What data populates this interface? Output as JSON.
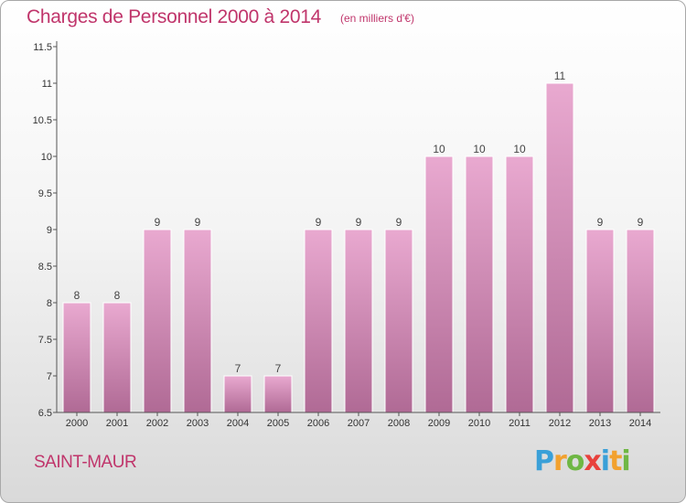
{
  "header": {
    "title": "Charges de Personnel 2000 à 2014",
    "subtitle": "(en milliers d'€)"
  },
  "location": "SAINT-MAUR",
  "logo": {
    "letters": [
      "P",
      "r",
      "o",
      "x",
      "i",
      "t",
      "i"
    ]
  },
  "colors": {
    "accent": "#c0356b",
    "bar_top": "#e9a9d0",
    "bar_bottom": "#b06a95"
  },
  "chart_data": {
    "type": "bar",
    "categories": [
      "2000",
      "2001",
      "2002",
      "2003",
      "2004",
      "2005",
      "2006",
      "2007",
      "2008",
      "2009",
      "2010",
      "2011",
      "2012",
      "2013",
      "2014"
    ],
    "values": [
      8,
      8,
      9,
      9,
      7,
      7,
      9,
      9,
      9,
      10,
      10,
      10,
      11,
      9,
      9
    ],
    "data_labels": [
      "8",
      "8",
      "9",
      "9",
      "7",
      "7",
      "9",
      "9",
      "9",
      "10",
      "10",
      "10",
      "11",
      "9",
      "9"
    ],
    "ylim": [
      6.5,
      11.5
    ],
    "yticks": [
      6.5,
      7,
      7.5,
      8,
      8.5,
      9,
      9.5,
      10,
      10.5,
      11,
      11.5
    ],
    "ytick_labels": [
      "6.5",
      "7",
      "7.5",
      "8",
      "8.5",
      "9",
      "9.5",
      "10",
      "10.5",
      "11",
      "11.5"
    ],
    "grid": false,
    "xlabel": "",
    "ylabel": ""
  }
}
